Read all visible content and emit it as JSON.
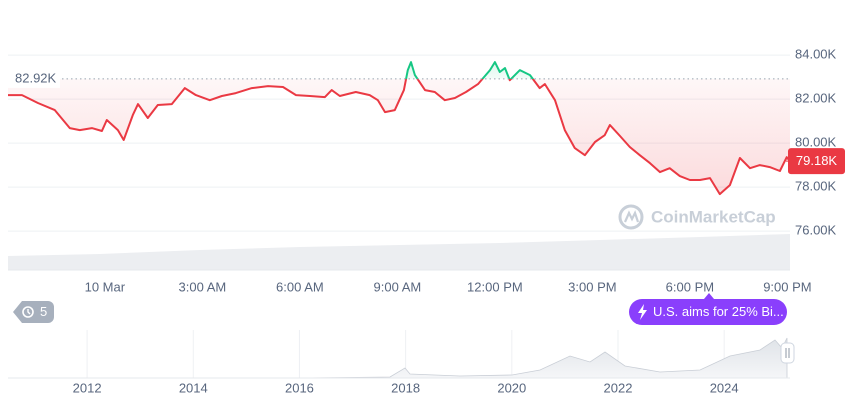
{
  "chart_data": {
    "type": "line",
    "color": "#ea3943",
    "up_color": "#16c784",
    "x": [
      -2.98,
      -2.55,
      -2.06,
      -1.54,
      -1.08,
      -0.77,
      -0.4,
      -0.09,
      0.06,
      0.4,
      0.58,
      0.86,
      1.02,
      1.32,
      1.63,
      2.06,
      2.46,
      2.8,
      3.23,
      3.6,
      4.03,
      4.52,
      5.02,
      5.48,
      5.88,
      6.31,
      6.77,
      6.98,
      7.23,
      7.72,
      8.15,
      8.4,
      8.62,
      8.92,
      9.2,
      9.32,
      9.42,
      9.54,
      9.85,
      10.15,
      10.46,
      10.77,
      11.11,
      11.48,
      11.85,
      12.0,
      12.15,
      12.31,
      12.46,
      12.77,
      13.08,
      13.38,
      13.54,
      13.85,
      14.15,
      14.46,
      14.77,
      15.08,
      15.38,
      15.54,
      15.85,
      16.15,
      16.46,
      16.77,
      17.08,
      17.38,
      17.69,
      18.0,
      18.31,
      18.62,
      18.92,
      19.23,
      19.54,
      19.85,
      20.15,
      20.46,
      20.77,
      20.98,
      21.08
    ],
    "values": [
      82180,
      82180,
      81820,
      81500,
      80680,
      80590,
      80680,
      80550,
      81050,
      80590,
      80140,
      81270,
      81770,
      81140,
      81730,
      81770,
      82500,
      82180,
      81950,
      82140,
      82270,
      82500,
      82590,
      82550,
      82180,
      82140,
      82090,
      82410,
      82140,
      82320,
      82180,
      81950,
      81410,
      81500,
      82410,
      83320,
      83680,
      83090,
      82410,
      82320,
      81950,
      82050,
      82320,
      82680,
      83320,
      83680,
      83230,
      83410,
      82860,
      83320,
      83090,
      82500,
      82680,
      81950,
      80590,
      79770,
      79450,
      80050,
      80360,
      80820,
      80320,
      79820,
      79450,
      79090,
      78680,
      78860,
      78500,
      78320,
      78320,
      78410,
      77680,
      78090,
      79320,
      78860,
      79000,
      78910,
      78730,
      79360,
      79180
    ],
    "xlim": [
      -2.98,
      21.08
    ],
    "xticks": [
      {
        "value": 0,
        "label": "10 Mar"
      },
      {
        "value": 3,
        "label": "3:00 AM"
      },
      {
        "value": 6,
        "label": "6:00 AM"
      },
      {
        "value": 9,
        "label": "9:00 AM"
      },
      {
        "value": 12,
        "label": "12:00 PM"
      },
      {
        "value": 15,
        "label": "3:00 PM"
      },
      {
        "value": 18,
        "label": "6:00 PM"
      },
      {
        "value": 21,
        "label": "9:00 PM"
      }
    ],
    "ylim": [
      74230,
      86050
    ],
    "yticks": [
      {
        "value": 76000,
        "label": "76.00K"
      },
      {
        "value": 78000,
        "label": "78.00K"
      },
      {
        "value": 80000,
        "label": "80.00K"
      },
      {
        "value": 82000,
        "label": "82.00K"
      },
      {
        "value": 84000,
        "label": "84.00K"
      }
    ],
    "grid": true,
    "reference": {
      "value": 82920,
      "label": "82.92K"
    },
    "current_price": {
      "value": 79180,
      "label": "79.18K"
    },
    "watermark": "CoinMarketCap",
    "history_badge": "5",
    "news_badge": "U.S. aims for 25% Bi...",
    "navigator": {
      "xlim": [
        2010.51,
        2025.24
      ],
      "xticks": [
        2012,
        2014,
        2016,
        2018,
        2020,
        2022,
        2024
      ]
    }
  }
}
